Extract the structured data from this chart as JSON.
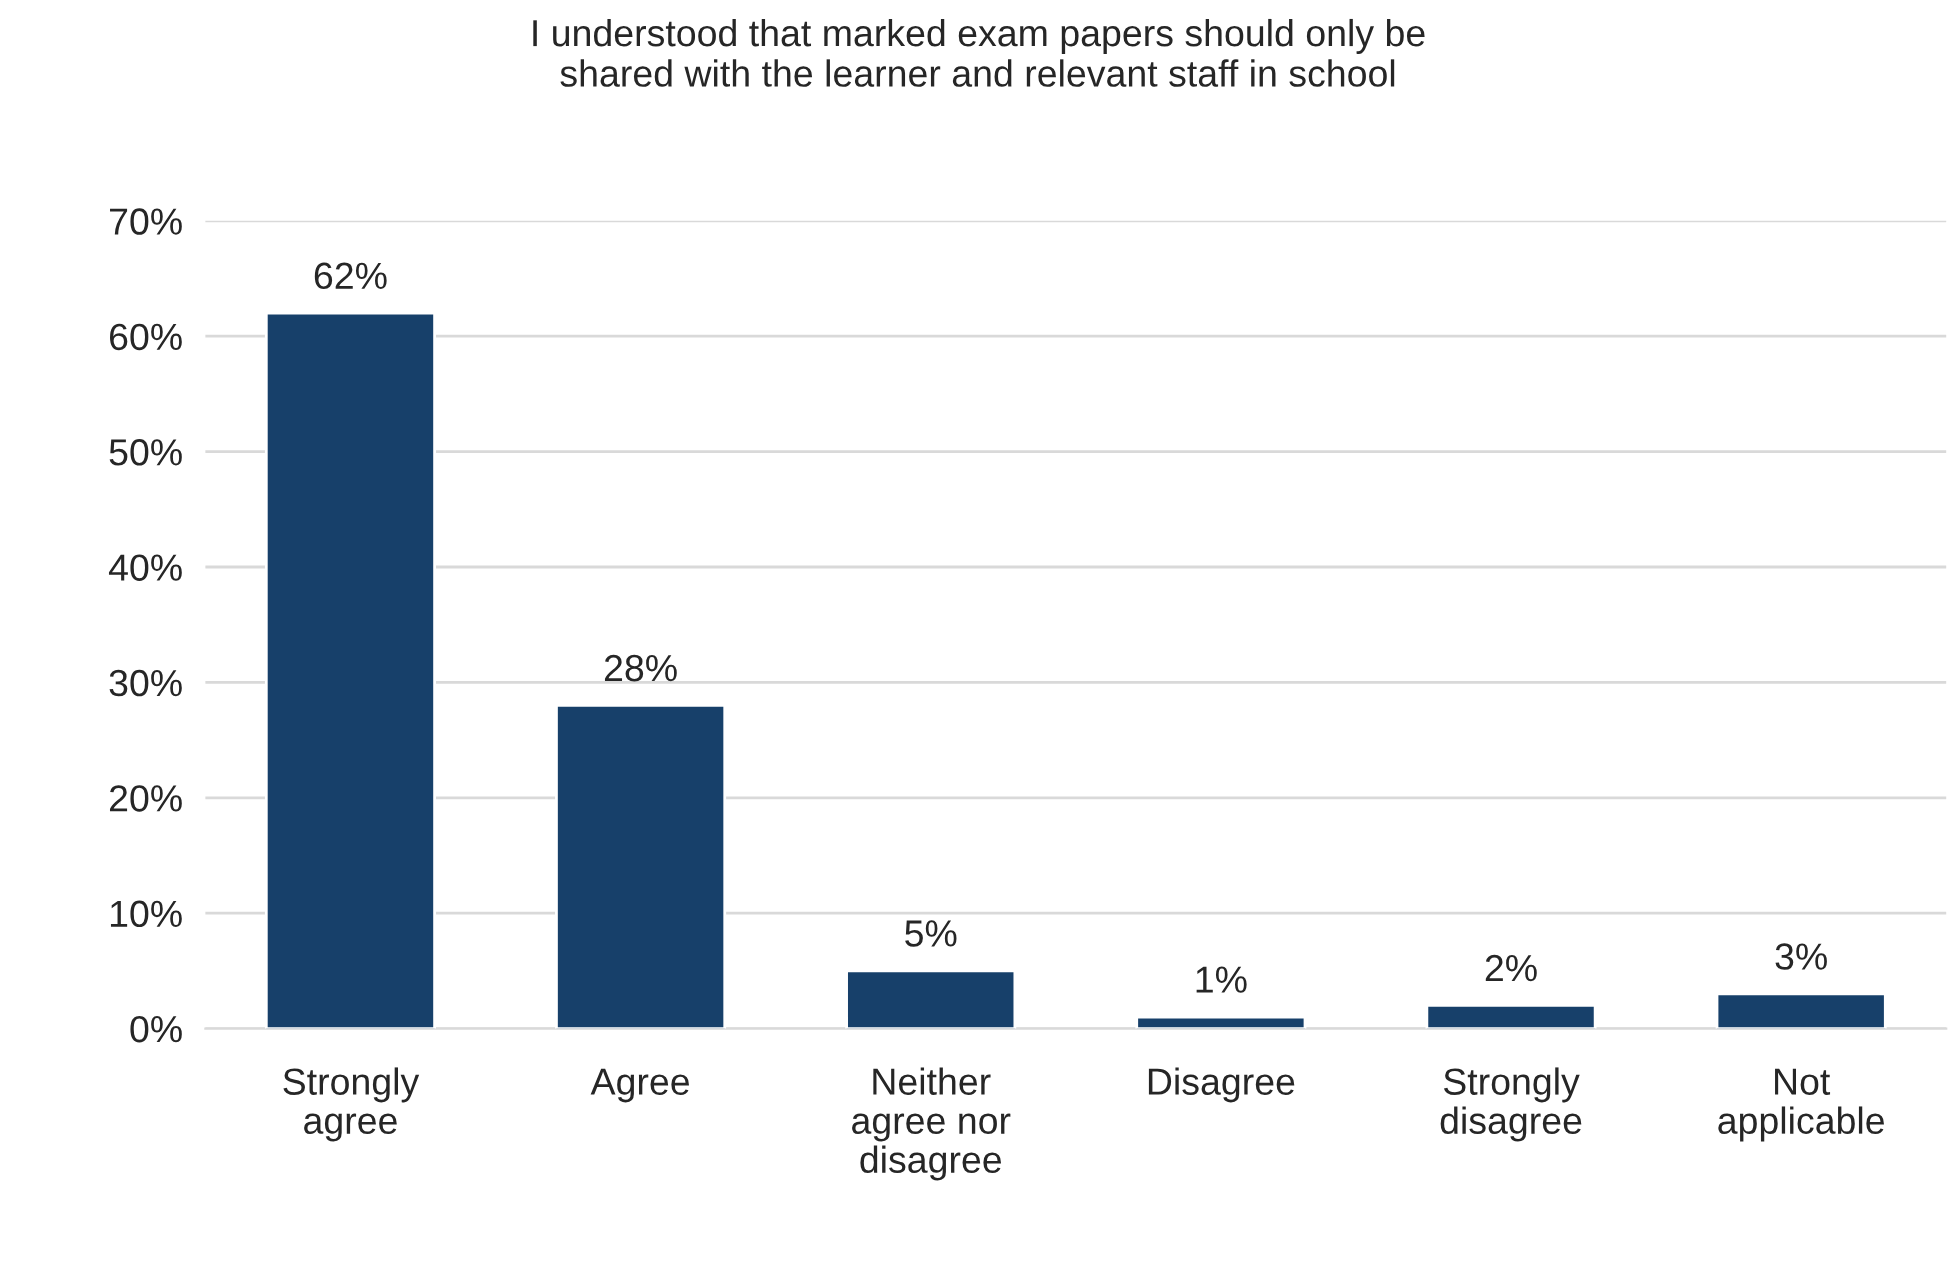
{
  "chart_data": {
    "type": "bar",
    "title": "I understood that marked exam papers should only be\nshared with the learner and relevant staff in school",
    "categories": [
      "Strongly\nagree",
      "Agree",
      "Neither\nagree nor\ndisagree",
      "Disagree",
      "Strongly\ndisagree",
      "Not\napplicable"
    ],
    "values": [
      62,
      28,
      5,
      1,
      2,
      3
    ],
    "value_labels": [
      "62%",
      "28%",
      "5%",
      "1%",
      "2%",
      "3%"
    ],
    "color": "#17406a",
    "ylim": [
      0,
      70
    ],
    "yticks": [
      {
        "value": 0,
        "label": "0%"
      },
      {
        "value": 10,
        "label": "10%"
      },
      {
        "value": 20,
        "label": "20%"
      },
      {
        "value": 30,
        "label": "30%"
      },
      {
        "value": 40,
        "label": "40%"
      },
      {
        "value": 50,
        "label": "50%"
      },
      {
        "value": 60,
        "label": "60%"
      },
      {
        "value": 70,
        "label": "70%"
      }
    ],
    "grid": "y"
  }
}
